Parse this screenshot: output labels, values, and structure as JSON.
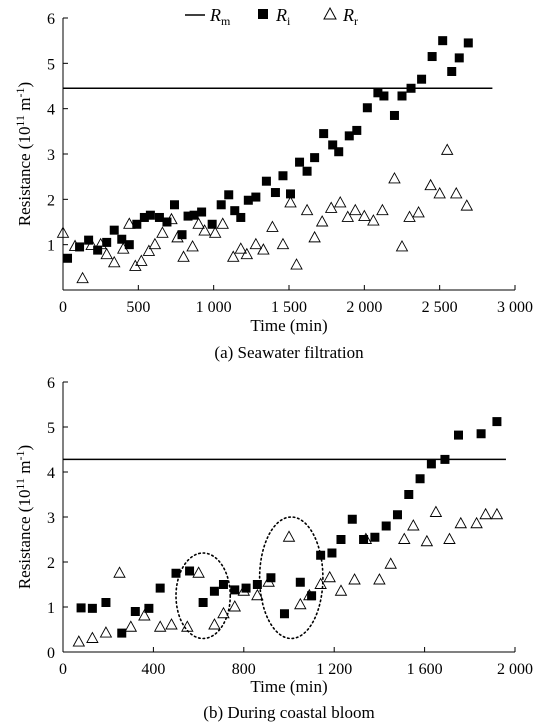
{
  "legend": [
    {
      "symbol": "line",
      "label": "R",
      "sub": "m"
    },
    {
      "symbol": "square",
      "label": "R",
      "sub": "i"
    },
    {
      "symbol": "triangle",
      "label": "R",
      "sub": "r"
    }
  ],
  "chart_data": [
    {
      "type": "scatter",
      "caption": "(a) Seawater filtration",
      "xlabel": "Time (min)",
      "ylabel": "Resistance (10¹¹ m⁻¹)",
      "xlim": [
        0,
        3000
      ],
      "ylim": [
        0,
        6
      ],
      "xticks": [
        0,
        500,
        1000,
        1500,
        2000,
        2500,
        3000
      ],
      "xtick_labels": [
        "0",
        "500",
        "1 000",
        "1 500",
        "2 000",
        "2 500",
        "3 000"
      ],
      "yticks": [
        1,
        2,
        3,
        4,
        5,
        6
      ],
      "ytick_labels": [
        "1",
        "2",
        "3",
        "4",
        "5",
        "6"
      ],
      "Rm": {
        "value": 4.45,
        "x_range": [
          0,
          2850
        ]
      },
      "series": [
        {
          "name": "Ri",
          "marker": "square",
          "points": [
            [
              30,
              0.7
            ],
            [
              110,
              0.95
            ],
            [
              170,
              1.1
            ],
            [
              230,
              0.88
            ],
            [
              290,
              1.05
            ],
            [
              340,
              1.32
            ],
            [
              390,
              1.12
            ],
            [
              440,
              1.0
            ],
            [
              490,
              1.45
            ],
            [
              540,
              1.6
            ],
            [
              580,
              1.65
            ],
            [
              640,
              1.6
            ],
            [
              690,
              1.5
            ],
            [
              740,
              1.88
            ],
            [
              790,
              1.22
            ],
            [
              830,
              1.63
            ],
            [
              870,
              1.65
            ],
            [
              920,
              1.72
            ],
            [
              990,
              1.45
            ],
            [
              1050,
              1.88
            ],
            [
              1100,
              2.1
            ],
            [
              1140,
              1.75
            ],
            [
              1180,
              1.6
            ],
            [
              1230,
              1.98
            ],
            [
              1280,
              2.05
            ],
            [
              1350,
              2.4
            ],
            [
              1410,
              2.15
            ],
            [
              1460,
              2.52
            ],
            [
              1510,
              2.12
            ],
            [
              1570,
              2.82
            ],
            [
              1620,
              2.62
            ],
            [
              1670,
              2.92
            ],
            [
              1730,
              3.45
            ],
            [
              1790,
              3.2
            ],
            [
              1830,
              3.05
            ],
            [
              1900,
              3.4
            ],
            [
              1950,
              3.52
            ],
            [
              2020,
              4.02
            ],
            [
              2090,
              4.35
            ],
            [
              2130,
              4.28
            ],
            [
              2200,
              3.85
            ],
            [
              2250,
              4.28
            ],
            [
              2310,
              4.45
            ],
            [
              2380,
              4.65
            ],
            [
              2450,
              5.15
            ],
            [
              2520,
              5.5
            ],
            [
              2580,
              4.82
            ],
            [
              2630,
              5.12
            ],
            [
              2690,
              5.45
            ]
          ]
        },
        {
          "name": "Rr",
          "marker": "triangle",
          "points": [
            [
              0,
              1.25
            ],
            [
              80,
              0.96
            ],
            [
              130,
              0.25
            ],
            [
              190,
              0.98
            ],
            [
              250,
              1.0
            ],
            [
              290,
              0.78
            ],
            [
              340,
              0.6
            ],
            [
              400,
              0.9
            ],
            [
              440,
              1.45
            ],
            [
              480,
              0.52
            ],
            [
              520,
              0.63
            ],
            [
              570,
              0.85
            ],
            [
              610,
              1.0
            ],
            [
              660,
              1.25
            ],
            [
              720,
              1.55
            ],
            [
              760,
              1.15
            ],
            [
              800,
              0.72
            ],
            [
              860,
              0.95
            ],
            [
              900,
              1.45
            ],
            [
              940,
              1.3
            ],
            [
              1010,
              1.25
            ],
            [
              1060,
              1.45
            ],
            [
              1130,
              0.72
            ],
            [
              1180,
              0.9
            ],
            [
              1220,
              0.78
            ],
            [
              1280,
              1.0
            ],
            [
              1330,
              0.88
            ],
            [
              1390,
              1.38
            ],
            [
              1460,
              1.0
            ],
            [
              1510,
              1.92
            ],
            [
              1550,
              0.55
            ],
            [
              1620,
              1.75
            ],
            [
              1670,
              1.15
            ],
            [
              1720,
              1.5
            ],
            [
              1780,
              1.8
            ],
            [
              1840,
              1.92
            ],
            [
              1890,
              1.6
            ],
            [
              1940,
              1.75
            ],
            [
              2000,
              1.62
            ],
            [
              2060,
              1.52
            ],
            [
              2120,
              1.75
            ],
            [
              2200,
              2.45
            ],
            [
              2250,
              0.95
            ],
            [
              2300,
              1.6
            ],
            [
              2360,
              1.7
            ],
            [
              2440,
              2.3
            ],
            [
              2500,
              2.12
            ],
            [
              2550,
              3.08
            ],
            [
              2610,
              2.12
            ],
            [
              2680,
              1.85
            ]
          ]
        }
      ]
    },
    {
      "type": "scatter",
      "caption": "(b) During coastal bloom",
      "xlabel": "Time (min)",
      "ylabel": "Resistance (10¹¹ m⁻¹)",
      "xlim": [
        0,
        2000
      ],
      "ylim": [
        0,
        6
      ],
      "xticks": [
        0,
        400,
        800,
        1200,
        1600,
        2000
      ],
      "xtick_labels": [
        "0",
        "400",
        "800",
        "1 200",
        "1 600",
        "2 000"
      ],
      "yticks": [
        0,
        1,
        2,
        3,
        4,
        5,
        6
      ],
      "ytick_labels": [
        "0",
        "1",
        "2",
        "3",
        "4",
        "5",
        "6"
      ],
      "Rm": {
        "value": 4.28,
        "x_range": [
          0,
          1960
        ]
      },
      "ellipses": [
        {
          "cx": 620,
          "cy": 1.25,
          "rx": 120,
          "ry": 0.95
        },
        {
          "cx": 1010,
          "cy": 1.65,
          "rx": 140,
          "ry": 1.35
        }
      ],
      "series": [
        {
          "name": "Ri",
          "marker": "square",
          "points": [
            [
              80,
              0.98
            ],
            [
              130,
              0.97
            ],
            [
              190,
              1.1
            ],
            [
              260,
              0.42
            ],
            [
              320,
              0.9
            ],
            [
              380,
              0.97
            ],
            [
              430,
              1.42
            ],
            [
              500,
              1.75
            ],
            [
              560,
              1.8
            ],
            [
              620,
              1.1
            ],
            [
              670,
              1.35
            ],
            [
              710,
              1.5
            ],
            [
              760,
              1.38
            ],
            [
              810,
              1.42
            ],
            [
              860,
              1.5
            ],
            [
              920,
              1.65
            ],
            [
              980,
              0.85
            ],
            [
              1050,
              1.55
            ],
            [
              1100,
              1.25
            ],
            [
              1140,
              2.15
            ],
            [
              1190,
              2.2
            ],
            [
              1230,
              2.5
            ],
            [
              1280,
              2.95
            ],
            [
              1330,
              2.5
            ],
            [
              1380,
              2.55
            ],
            [
              1430,
              2.8
            ],
            [
              1480,
              3.05
            ],
            [
              1530,
              3.5
            ],
            [
              1580,
              3.85
            ],
            [
              1630,
              4.18
            ],
            [
              1690,
              4.28
            ],
            [
              1750,
              4.82
            ],
            [
              1850,
              4.85
            ],
            [
              1920,
              5.12
            ]
          ]
        },
        {
          "name": "Rr",
          "marker": "triangle",
          "points": [
            [
              70,
              0.22
            ],
            [
              130,
              0.3
            ],
            [
              190,
              0.42
            ],
            [
              250,
              1.75
            ],
            [
              300,
              0.55
            ],
            [
              360,
              0.8
            ],
            [
              430,
              0.55
            ],
            [
              480,
              0.6
            ],
            [
              550,
              0.55
            ],
            [
              600,
              1.75
            ],
            [
              670,
              0.6
            ],
            [
              710,
              0.85
            ],
            [
              760,
              1.0
            ],
            [
              800,
              1.35
            ],
            [
              860,
              1.25
            ],
            [
              910,
              1.55
            ],
            [
              1000,
              2.55
            ],
            [
              1050,
              1.05
            ],
            [
              1090,
              1.25
            ],
            [
              1140,
              1.5
            ],
            [
              1180,
              1.65
            ],
            [
              1230,
              1.35
            ],
            [
              1290,
              1.6
            ],
            [
              1340,
              2.5
            ],
            [
              1400,
              1.6
            ],
            [
              1450,
              1.95
            ],
            [
              1510,
              2.5
            ],
            [
              1550,
              2.8
            ],
            [
              1610,
              2.45
            ],
            [
              1650,
              3.1
            ],
            [
              1710,
              2.5
            ],
            [
              1760,
              2.85
            ],
            [
              1830,
              2.85
            ],
            [
              1870,
              3.05
            ],
            [
              1920,
              3.05
            ]
          ]
        }
      ]
    }
  ]
}
